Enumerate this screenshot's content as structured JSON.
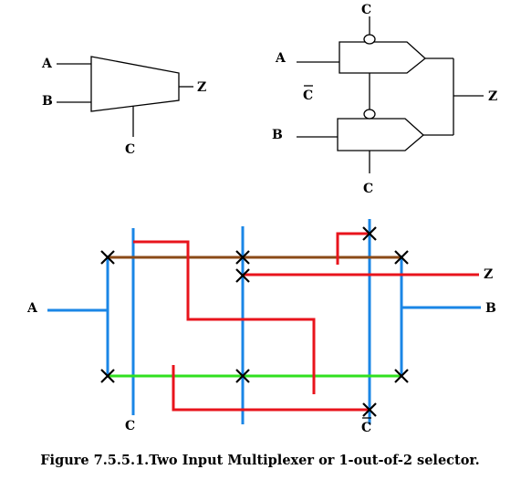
{
  "mux_symbol": {
    "input_a": "A",
    "input_b": "B",
    "select": "C",
    "output": "Z"
  },
  "gate_circuit": {
    "select_top": "C",
    "input_a": "A",
    "select_bar": "C",
    "input_b": "B",
    "select_bottom": "C",
    "output": "Z"
  },
  "switch_matrix": {
    "input_a": "A",
    "output_z": "Z",
    "input_b": "B",
    "select_c": "C",
    "select_c_bar": "C"
  },
  "caption": "Figure 7.5.5.1.Two Input Multiplexer or 1-out-of-2 selector."
}
